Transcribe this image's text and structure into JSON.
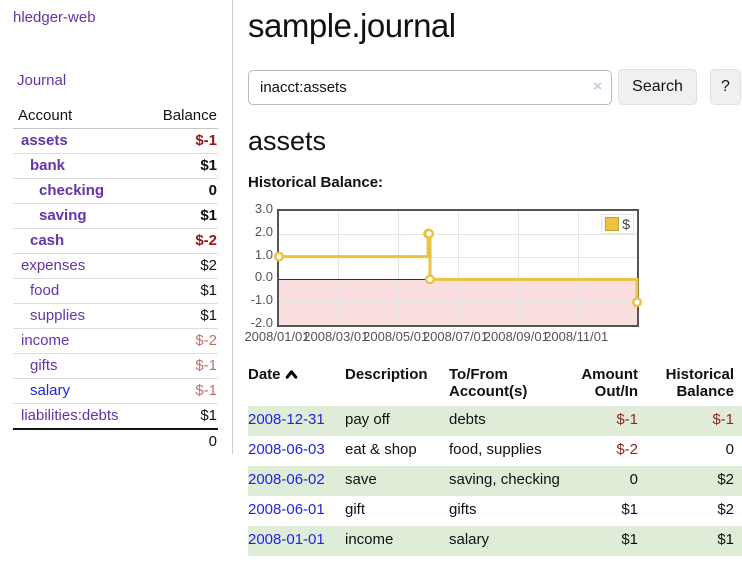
{
  "app": {
    "brand": "hledger-web"
  },
  "sidebar": {
    "journal_link": "Journal",
    "accounts": {
      "header": {
        "account": "Account",
        "balance": "Balance"
      },
      "rows": [
        {
          "name": "assets",
          "balance": "$-1"
        },
        {
          "name": "bank",
          "balance": "$1"
        },
        {
          "name": "checking",
          "balance": "0"
        },
        {
          "name": "saving",
          "balance": "$1"
        },
        {
          "name": "cash",
          "balance": "$-2"
        },
        {
          "name": "expenses",
          "balance": "$2"
        },
        {
          "name": "food",
          "balance": "$1"
        },
        {
          "name": "supplies",
          "balance": "$1"
        },
        {
          "name": "income",
          "balance": "$-2"
        },
        {
          "name": "gifts",
          "balance": "$-1"
        },
        {
          "name": "salary",
          "balance": "$-1"
        },
        {
          "name": "liabilities:debts",
          "balance": "$1"
        }
      ],
      "total": "0"
    }
  },
  "main": {
    "title": "sample.journal",
    "search": {
      "value": "inacct:assets",
      "clear_icon": "×",
      "search_button": "Search",
      "help_button": "?"
    },
    "account_heading": "assets",
    "chart_label": "Historical Balance:"
  },
  "chart_data": {
    "type": "line",
    "title": "Historical Balance",
    "step": true,
    "series": [
      {
        "name": "$",
        "color": "#EDC240",
        "points": [
          [
            "2008/01/01",
            1
          ],
          [
            "2008/06/01",
            2
          ],
          [
            "2008/06/02",
            2
          ],
          [
            "2008/06/03",
            0
          ],
          [
            "2008/12/31",
            -1
          ]
        ]
      }
    ],
    "xrange": [
      "2008/01/01",
      "2008/12/31"
    ],
    "ylim": [
      -2,
      3
    ],
    "yticks": [
      3.0,
      2.0,
      1.0,
      0.0,
      -1.0,
      -2.0
    ],
    "xticks": [
      "2008/01/01",
      "2008/03/01",
      "2008/05/01",
      "2008/07/01",
      "2008/09/01",
      "2008/11/01"
    ],
    "grid": true,
    "legend_position": "top-right",
    "negative_region_color": "#fbdfe0",
    "zero_line_color": "#990000"
  },
  "register": {
    "columns": {
      "date": "Date",
      "description": "Description",
      "tofrom": "To/From Account(s)",
      "amount": "Amount Out/In",
      "balance": "Historical Balance"
    },
    "rows": [
      {
        "date": "2008-12-31",
        "description": "pay off",
        "accounts": "debts",
        "amount": "$-1",
        "balance": "$-1"
      },
      {
        "date": "2008-06-03",
        "description": "eat & shop",
        "accounts": "food, supplies",
        "amount": "$-2",
        "balance": "0"
      },
      {
        "date": "2008-06-02",
        "description": "save",
        "accounts": "saving, checking",
        "amount": "0",
        "balance": "$2"
      },
      {
        "date": "2008-06-01",
        "description": "gift",
        "accounts": "gifts",
        "amount": "$1",
        "balance": "$2"
      },
      {
        "date": "2008-01-01",
        "description": "income",
        "accounts": "salary",
        "amount": "$1",
        "balance": "$1"
      }
    ]
  },
  "theme": {
    "link_purple": "#6633aa",
    "link_blue": "#2222e6",
    "negative_strong": "#991414",
    "negative_soft": "#c0706c",
    "row_stripe_green": "#deecd8",
    "series_yellow": "#EDC240"
  }
}
